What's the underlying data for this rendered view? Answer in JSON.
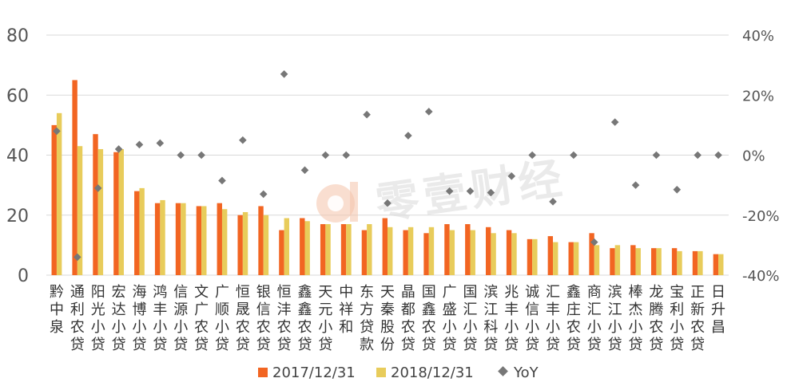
{
  "watermark": {
    "text": "零壹财经"
  },
  "colors": {
    "s2017": "#F26522",
    "s2018": "#E8CC5B",
    "yoy": "#777777"
  },
  "chart_data": {
    "type": "bar",
    "categories": [
      "黔中泉",
      "通利农贷",
      "阳光小贷",
      "宏达小贷",
      "海博小贷",
      "鸿丰小贷",
      "信源小贷",
      "文广农贷",
      "广顺小贷",
      "恒晟农贷",
      "银信农贷",
      "恒沣农贷",
      "鑫鑫农贷",
      "天元小贷",
      "中祥和",
      "东方贷款",
      "天秦股份",
      "晶都农贷",
      "国鑫农贷",
      "广盛小贷",
      "国汇小贷",
      "滨江科贷",
      "兆丰小贷",
      "诚信小贷",
      "汇丰小贷",
      "鑫庄农贷",
      "商汇小贷",
      "滨江小贷",
      "棒杰小贷",
      "龙腾农贷",
      "宝利小贷",
      "正新农贷",
      "日升昌"
    ],
    "series": [
      {
        "name": "2017/12/31",
        "axis": "left",
        "values": [
          50,
          65,
          47,
          41,
          28,
          24,
          24,
          23,
          24,
          20,
          23,
          15,
          19,
          17,
          17,
          15,
          19,
          15,
          14,
          17,
          17,
          16,
          15,
          12,
          13,
          11,
          14,
          9,
          10,
          9,
          9,
          8,
          7
        ]
      },
      {
        "name": "2018/12/31",
        "axis": "left",
        "values": [
          54,
          43,
          42,
          42,
          29,
          25,
          24,
          23,
          22,
          21,
          20,
          19,
          18,
          17,
          17,
          17,
          16,
          16,
          16,
          15,
          15,
          14,
          14,
          12,
          11,
          11,
          10,
          10,
          9,
          9,
          8,
          8,
          7
        ]
      },
      {
        "name": "YoY",
        "axis": "right",
        "type": "scatter",
        "values": [
          0.08,
          -0.34,
          -0.11,
          0.02,
          0.035,
          0.04,
          0.0,
          0.0,
          -0.085,
          0.05,
          -0.13,
          0.27,
          -0.05,
          0.0,
          0.0,
          0.135,
          -0.16,
          0.065,
          0.145,
          -0.12,
          -0.12,
          -0.125,
          -0.07,
          0.0,
          -0.155,
          0.0,
          -0.29,
          0.11,
          -0.1,
          0.0,
          -0.115,
          0.0,
          0.0
        ]
      }
    ],
    "y_left": {
      "min": 0,
      "max": 80,
      "ticks": [
        "0",
        "20",
        "40",
        "60",
        "80"
      ]
    },
    "y_right": {
      "min": -0.4,
      "max": 0.4,
      "ticks": [
        "-40%",
        "-20%",
        "0%",
        "20%",
        "40%"
      ]
    },
    "legend": {
      "position": "bottom",
      "labels": [
        "2017/12/31",
        "2018/12/31",
        "YoY"
      ]
    },
    "grid": true
  }
}
